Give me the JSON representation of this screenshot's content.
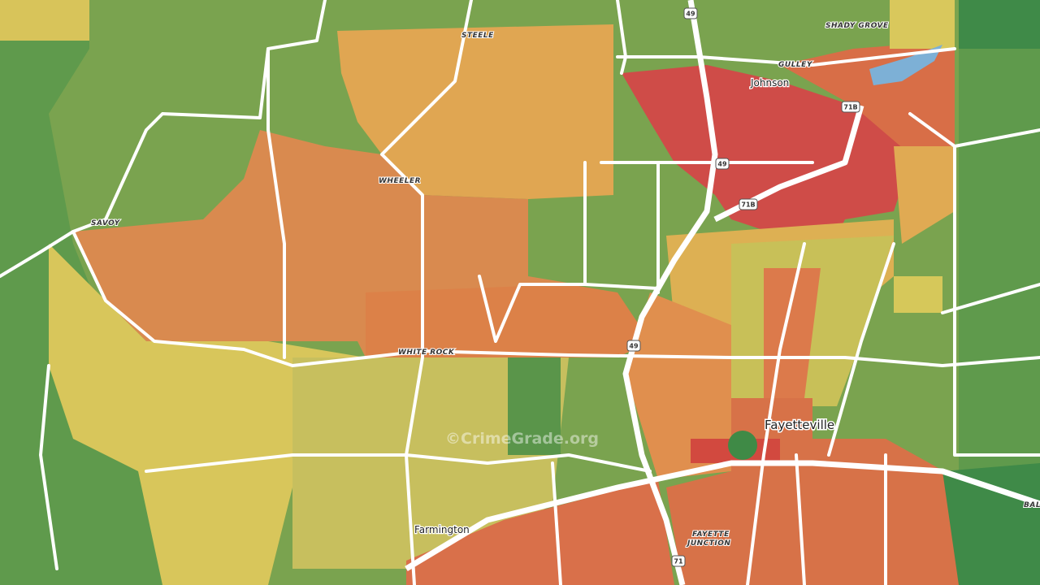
{
  "places": [
    "STEELE",
    "SHADY GROVE",
    "GULLEY",
    "Johnson",
    "WHEELER",
    "SAVOY",
    "WHITE ROCK",
    "Fayetteville",
    "Farmington",
    "FAYETTE",
    "JUNCTION",
    "BAL"
  ],
  "shields": [
    "49",
    "71B",
    "49",
    "71B",
    "49",
    "71"
  ],
  "watermark": "©CrimeGrade.org"
}
